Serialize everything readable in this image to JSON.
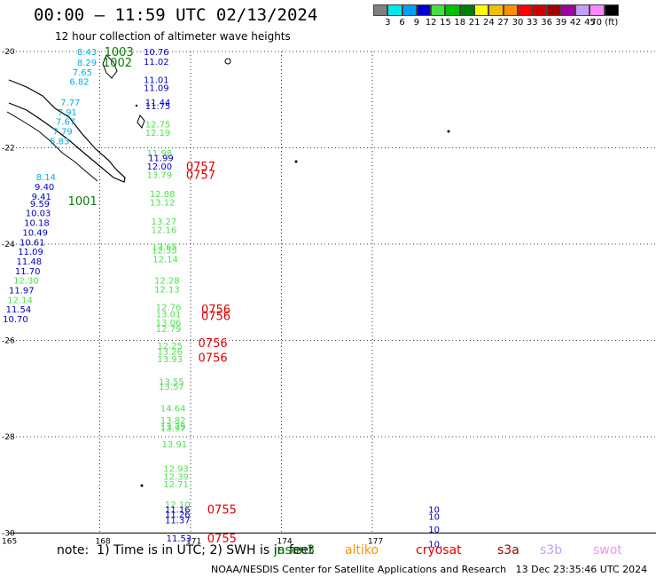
{
  "header": {
    "title": "00:00 — 11:59 UTC 02/13/2024",
    "subtitle": "12 hour collection of altimeter wave heights"
  },
  "legend": {
    "colors": [
      "#808080",
      "#00e8e8",
      "#00a0ff",
      "#0000d0",
      "#40e040",
      "#00c000",
      "#008000",
      "#ffff00",
      "#f0c000",
      "#ff9000",
      "#ff0000",
      "#d00000",
      "#a00000",
      "#a000a0",
      "#c0a0ff",
      "#ff88ff",
      "#000000"
    ],
    "labels": [
      "3",
      "6",
      "9",
      "12",
      "15",
      "18",
      "21",
      "24",
      "27",
      "30",
      "33",
      "36",
      "39",
      "42",
      "45",
      "70 (ft)"
    ]
  },
  "map": {
    "lat_ticks": [
      "-20",
      "-22",
      "-24",
      "-26",
      "-28",
      "-30"
    ],
    "lon_ticks": [
      "165",
      "168",
      "171",
      "174",
      "177"
    ],
    "colors": {
      "cyan": "#00b0e0",
      "blue": "#0000c0",
      "green": "#50e050",
      "darkgreen": "#008000",
      "red": "#e00000"
    },
    "wave_labels": [
      {
        "t": "8.43",
        "lon": 167.25,
        "lat": -20.0,
        "c": "cyan"
      },
      {
        "t": "8.29",
        "lon": 167.25,
        "lat": -20.22,
        "c": "cyan"
      },
      {
        "t": "7.65",
        "lon": 167.1,
        "lat": -20.42,
        "c": "cyan"
      },
      {
        "t": "6.82",
        "lon": 167.0,
        "lat": -20.62,
        "c": "cyan"
      },
      {
        "t": "7.77",
        "lon": 166.7,
        "lat": -21.05,
        "c": "cyan"
      },
      {
        "t": "7.91",
        "lon": 166.6,
        "lat": -21.25,
        "c": "cyan"
      },
      {
        "t": "7.67",
        "lon": 166.55,
        "lat": -21.45,
        "c": "cyan"
      },
      {
        "t": "7.79",
        "lon": 166.45,
        "lat": -21.65,
        "c": "cyan"
      },
      {
        "t": "5.83",
        "lon": 166.35,
        "lat": -21.85,
        "c": "cyan"
      },
      {
        "t": "8.14",
        "lon": 165.9,
        "lat": -22.6,
        "c": "cyan"
      },
      {
        "t": "9.40",
        "lon": 165.85,
        "lat": -22.8,
        "c": "blue"
      },
      {
        "t": "9.41",
        "lon": 165.75,
        "lat": -23.0,
        "c": "blue"
      },
      {
        "t": "9.59",
        "lon": 165.7,
        "lat": -23.15,
        "c": "blue"
      },
      {
        "t": "10.03",
        "lon": 165.55,
        "lat": -23.35,
        "c": "blue"
      },
      {
        "t": "10.18",
        "lon": 165.5,
        "lat": -23.55,
        "c": "blue"
      },
      {
        "t": "10.49",
        "lon": 165.45,
        "lat": -23.75,
        "c": "blue"
      },
      {
        "t": "10.61",
        "lon": 165.35,
        "lat": -23.95,
        "c": "blue"
      },
      {
        "t": "11.09",
        "lon": 165.3,
        "lat": -24.15,
        "c": "blue"
      },
      {
        "t": "11.48",
        "lon": 165.25,
        "lat": -24.35,
        "c": "blue"
      },
      {
        "t": "11.70",
        "lon": 165.2,
        "lat": -24.55,
        "c": "blue"
      },
      {
        "t": "12.30",
        "lon": 165.15,
        "lat": -24.75,
        "c": "green"
      },
      {
        "t": "11.97",
        "lon": 165.0,
        "lat": -24.95,
        "c": "blue"
      },
      {
        "t": "12.14",
        "lon": 164.95,
        "lat": -25.15,
        "c": "green"
      },
      {
        "t": "11.54",
        "lon": 164.9,
        "lat": -25.35,
        "c": "blue"
      },
      {
        "t": "10.70",
        "lon": 164.8,
        "lat": -25.55,
        "c": "blue"
      },
      {
        "t": "10.76",
        "lon": 169.45,
        "lat": -20.0,
        "c": "blue"
      },
      {
        "t": "11.02",
        "lon": 169.45,
        "lat": -20.2,
        "c": "blue"
      },
      {
        "t": "11.01",
        "lon": 169.45,
        "lat": -20.58,
        "c": "blue"
      },
      {
        "t": "11.09",
        "lon": 169.45,
        "lat": -20.75,
        "c": "blue"
      },
      {
        "t": "11.44",
        "lon": 169.5,
        "lat": -21.05,
        "c": "blue"
      },
      {
        "t": "11.75",
        "lon": 169.5,
        "lat": -21.12,
        "c": "blue"
      },
      {
        "t": "12.75",
        "lon": 169.5,
        "lat": -21.5,
        "c": "green"
      },
      {
        "t": "12.19",
        "lon": 169.5,
        "lat": -21.68,
        "c": "green"
      },
      {
        "t": "11.98",
        "lon": 169.55,
        "lat": -22.1,
        "c": "green"
      },
      {
        "t": "11.99",
        "lon": 169.6,
        "lat": -22.2,
        "c": "blue"
      },
      {
        "t": "12.00",
        "lon": 169.55,
        "lat": -22.38,
        "c": "blue"
      },
      {
        "t": "13.79",
        "lon": 169.55,
        "lat": -22.55,
        "c": "green"
      },
      {
        "t": "12.88",
        "lon": 169.65,
        "lat": -22.95,
        "c": "green"
      },
      {
        "t": "13.12",
        "lon": 169.65,
        "lat": -23.12,
        "c": "green"
      },
      {
        "t": "13.27",
        "lon": 169.7,
        "lat": -23.52,
        "c": "green"
      },
      {
        "t": "12.16",
        "lon": 169.7,
        "lat": -23.7,
        "c": "green"
      },
      {
        "t": "13.65",
        "lon": 169.72,
        "lat": -24.05,
        "c": "green"
      },
      {
        "t": "12.55",
        "lon": 169.72,
        "lat": -24.12,
        "c": "green"
      },
      {
        "t": "12.14",
        "lon": 169.75,
        "lat": -24.3,
        "c": "green"
      },
      {
        "t": "12.28",
        "lon": 169.8,
        "lat": -24.75,
        "c": "green"
      },
      {
        "t": "12.13",
        "lon": 169.8,
        "lat": -24.93,
        "c": "green"
      },
      {
        "t": "12.76",
        "lon": 169.85,
        "lat": -25.3,
        "c": "green"
      },
      {
        "t": "13.01",
        "lon": 169.85,
        "lat": -25.45,
        "c": "green"
      },
      {
        "t": "13.06",
        "lon": 169.85,
        "lat": -25.62,
        "c": "green"
      },
      {
        "t": "12.79",
        "lon": 169.85,
        "lat": -25.75,
        "c": "green"
      },
      {
        "t": "12.25",
        "lon": 169.9,
        "lat": -26.1,
        "c": "green"
      },
      {
        "t": "13.26",
        "lon": 169.9,
        "lat": -26.22,
        "c": "green"
      },
      {
        "t": "13.93",
        "lon": 169.9,
        "lat": -26.38,
        "c": "green"
      },
      {
        "t": "13.55",
        "lon": 169.95,
        "lat": -26.85,
        "c": "green"
      },
      {
        "t": "13.57",
        "lon": 169.95,
        "lat": -26.95,
        "c": "green"
      },
      {
        "t": "14.64",
        "lon": 170.0,
        "lat": -27.4,
        "c": "green"
      },
      {
        "t": "13.82",
        "lon": 170.0,
        "lat": -27.65,
        "c": "green"
      },
      {
        "t": "13.79",
        "lon": 170.0,
        "lat": -27.78,
        "c": "green"
      },
      {
        "t": "13.97",
        "lon": 170.0,
        "lat": -27.82,
        "c": "green"
      },
      {
        "t": "13.91",
        "lon": 170.05,
        "lat": -28.15,
        "c": "green"
      },
      {
        "t": "12.93",
        "lon": 170.1,
        "lat": -28.65,
        "c": "green"
      },
      {
        "t": "12.39",
        "lon": 170.1,
        "lat": -28.82,
        "c": "green"
      },
      {
        "t": "12.71",
        "lon": 170.1,
        "lat": -28.98,
        "c": "green"
      },
      {
        "t": "12.10",
        "lon": 170.15,
        "lat": -29.4,
        "c": "green"
      },
      {
        "t": "11.16",
        "lon": 170.15,
        "lat": -29.5,
        "c": "blue"
      },
      {
        "t": "11.26",
        "lon": 170.15,
        "lat": -29.6,
        "c": "blue"
      },
      {
        "t": "11.37",
        "lon": 170.15,
        "lat": -29.72,
        "c": "blue"
      },
      {
        "t": "11.53",
        "lon": 170.2,
        "lat": -30.1,
        "c": "blue"
      },
      {
        "t": "10",
        "lon": 178.85,
        "lat": -29.5,
        "c": "blue"
      },
      {
        "t": "10",
        "lon": 178.85,
        "lat": -29.65,
        "c": "blue"
      },
      {
        "t": "10",
        "lon": 178.85,
        "lat": -29.92,
        "c": "blue"
      },
      {
        "t": "10.",
        "lon": 178.85,
        "lat": -30.22,
        "c": "blue"
      }
    ],
    "time_labels": [
      {
        "t": "1003",
        "lon": 168.15,
        "lat": -20.0,
        "c": "darkgreen"
      },
      {
        "t": "1002",
        "lon": 168.1,
        "lat": -20.22,
        "c": "darkgreen"
      },
      {
        "t": "1001",
        "lon": 166.95,
        "lat": -23.1,
        "c": "darkgreen"
      },
      {
        "t": "0757",
        "lon": 170.85,
        "lat": -22.38,
        "c": "red"
      },
      {
        "t": "0757",
        "lon": 170.85,
        "lat": -22.55,
        "c": "red"
      },
      {
        "t": "0756",
        "lon": 171.35,
        "lat": -25.35,
        "c": "red"
      },
      {
        "t": "0756",
        "lon": 171.35,
        "lat": -25.48,
        "c": "red"
      },
      {
        "t": "0756",
        "lon": 171.25,
        "lat": -26.05,
        "c": "red"
      },
      {
        "t": "0756",
        "lon": 171.25,
        "lat": -26.35,
        "c": "red"
      },
      {
        "t": "0755",
        "lon": 171.55,
        "lat": -29.5,
        "c": "red"
      },
      {
        "t": "0755",
        "lon": 171.55,
        "lat": -30.1,
        "c": "red"
      }
    ]
  },
  "footer": {
    "note": "note:  1) Time is in UTC; 2) SWH is in feet",
    "credit": "NOAA/NESDIS Center for Satellite Applications and Research   13 Dec 23:35:46 UTC 2024",
    "missions": [
      {
        "name": "jason3",
        "color": "#008000"
      },
      {
        "name": "altiko",
        "color": "#ff9000"
      },
      {
        "name": "cryosat",
        "color": "#e00000"
      },
      {
        "name": "s3a",
        "color": "#a00000"
      },
      {
        "name": "s3b",
        "color": "#c0a0ff"
      },
      {
        "name": "swot",
        "color": "#ff88ff"
      }
    ]
  }
}
